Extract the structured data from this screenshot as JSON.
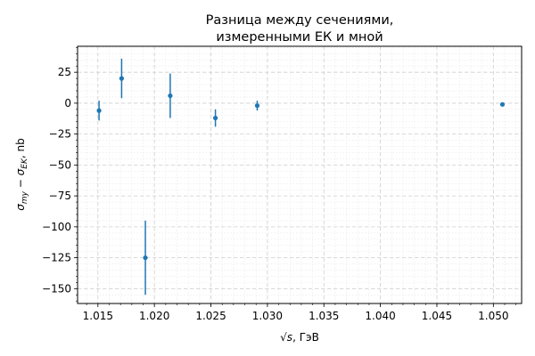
{
  "chart_data": {
    "type": "scatter",
    "title": [
      "Разница между сечениями,",
      "измеренными ЕК и мной"
    ],
    "xlabel": "√s, ГэВ",
    "ylabel": "σmy − σEK, nb",
    "xlim": [
      1.0132,
      1.0525
    ],
    "ylim": [
      -162,
      46
    ],
    "x_ticks": [
      1.015,
      1.02,
      1.025,
      1.03,
      1.035,
      1.04,
      1.045,
      1.05
    ],
    "x_tick_labels": [
      "1.015",
      "1.020",
      "1.025",
      "1.030",
      "1.035",
      "1.040",
      "1.045",
      "1.050"
    ],
    "y_ticks": [
      25,
      0,
      -25,
      -50,
      -75,
      -100,
      -125,
      -150
    ],
    "y_tick_labels": [
      "25",
      "0",
      "−25",
      "−50",
      "−75",
      "−100",
      "−125",
      "−150"
    ],
    "grid": true,
    "marker_color": "#1f77b4",
    "points": [
      {
        "x": 1.0151,
        "y": -6,
        "err": 8
      },
      {
        "x": 1.0171,
        "y": 20,
        "err": 16
      },
      {
        "x": 1.0192,
        "y": -125,
        "err": 30
      },
      {
        "x": 1.0214,
        "y": 6,
        "err": 18
      },
      {
        "x": 1.0254,
        "y": -12,
        "err": 7
      },
      {
        "x": 1.0291,
        "y": -2,
        "err": 4
      },
      {
        "x": 1.0508,
        "y": -1,
        "err": 1.5
      }
    ]
  }
}
